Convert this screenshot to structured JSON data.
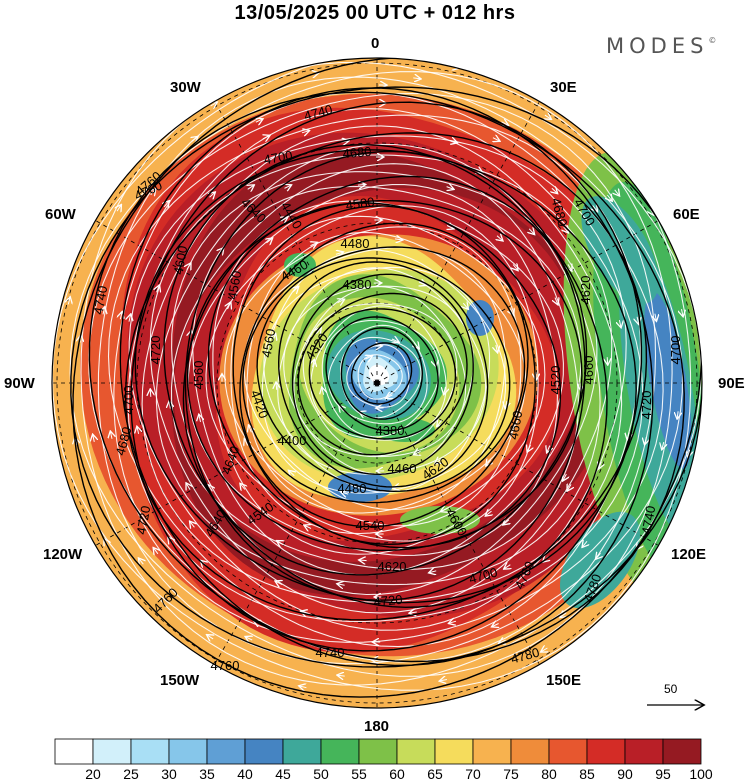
{
  "header": {
    "title": "13/05/2025  00 UTC  + 012 hrs",
    "brand": "MODES",
    "brand_mark": "©"
  },
  "map": {
    "projection": "north-polar-stereographic",
    "longitude_labels": [
      {
        "id": "0",
        "text": "0"
      },
      {
        "id": "30e",
        "text": "30E"
      },
      {
        "id": "60e",
        "text": "60E"
      },
      {
        "id": "90e",
        "text": "90E"
      },
      {
        "id": "120e",
        "text": "120E"
      },
      {
        "id": "150e",
        "text": "150E"
      },
      {
        "id": "180",
        "text": "180"
      },
      {
        "id": "150w",
        "text": "150W"
      },
      {
        "id": "120w",
        "text": "120W"
      },
      {
        "id": "90w",
        "text": "90W"
      },
      {
        "id": "60w",
        "text": "60W"
      },
      {
        "id": "30w",
        "text": "30W"
      }
    ],
    "contour_labels": [
      "4740",
      "4700",
      "4680",
      "4760",
      "4640",
      "4580",
      "4480",
      "4460",
      "4380",
      "4320",
      "4560",
      "4440",
      "4420",
      "4400",
      "4380",
      "4460",
      "4480",
      "4540",
      "4540",
      "4640",
      "4620",
      "4600",
      "4700",
      "4720",
      "4740",
      "4760",
      "4780",
      "4760",
      "4780",
      "4740",
      "4700",
      "4720",
      "4660",
      "4620",
      "4520",
      "4660",
      "4700",
      "4680",
      "4740",
      "4760",
      "4760",
      "4700",
      "4680",
      "4720",
      "4720",
      "4560",
      "4620",
      "4560",
      "4600",
      "4640"
    ],
    "colors": {
      "background": "#ffffff",
      "contour_line": "#000000",
      "streamline": "#ffffff"
    }
  },
  "scale_arrow": {
    "value": "50"
  },
  "colorbar": {
    "ticks": [
      "20",
      "25",
      "30",
      "35",
      "40",
      "45",
      "50",
      "55",
      "60",
      "65",
      "70",
      "75",
      "80",
      "85",
      "90",
      "95",
      "100"
    ],
    "colors": [
      "#ffffff",
      "#d2f0fa",
      "#a9dff5",
      "#86c6ea",
      "#5f9fd5",
      "#4584c2",
      "#3ea89a",
      "#45b55a",
      "#7ec148",
      "#c7dc5a",
      "#f5dc5c",
      "#f7b24f",
      "#ef8c3a",
      "#e7572f",
      "#d42c26",
      "#b91f27",
      "#951a22"
    ]
  }
}
